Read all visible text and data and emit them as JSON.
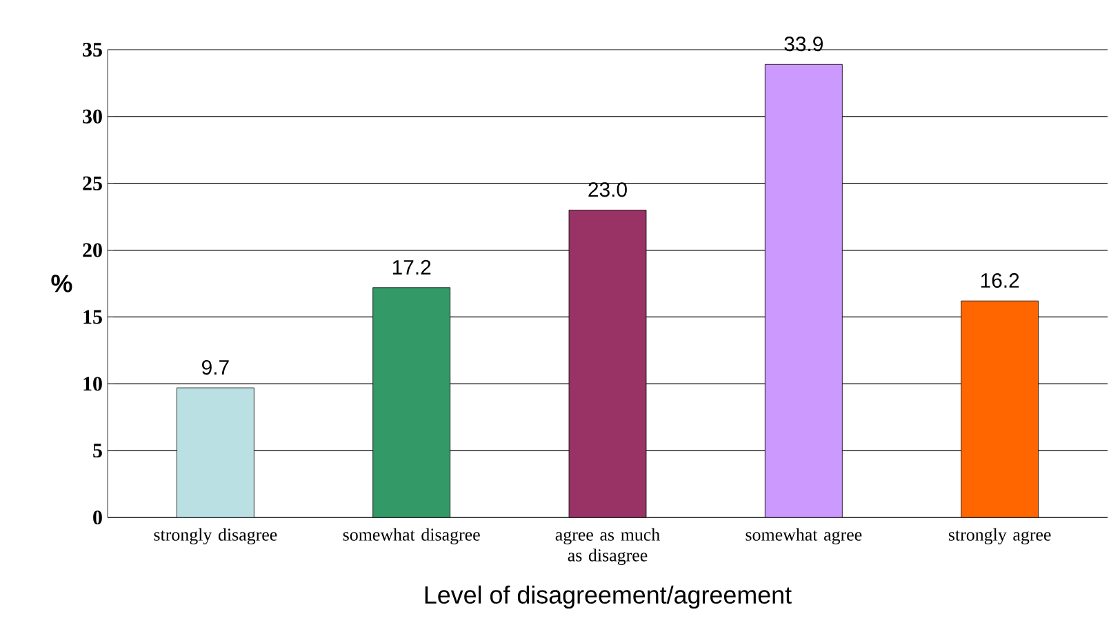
{
  "chart_data": {
    "type": "bar",
    "xlabel": "Level of disagreement/agreement",
    "ylabel": "%",
    "categories": [
      "strongly disagree",
      "somewhat disagree",
      "agree as much as disagree",
      "somewhat agree",
      "strongly agree"
    ],
    "values": [
      9.7,
      17.2,
      23.0,
      33.9,
      16.2
    ],
    "value_labels": [
      "9.7",
      "17.2",
      "23.0",
      "33.9",
      "16.2"
    ],
    "colors": [
      "#bbe0e3",
      "#339966",
      "#993366",
      "#cc99ff",
      "#ff6600"
    ],
    "ylim": [
      0,
      35
    ],
    "yticks": [
      0,
      5,
      10,
      15,
      20,
      25,
      30,
      35
    ],
    "grid": "y"
  }
}
